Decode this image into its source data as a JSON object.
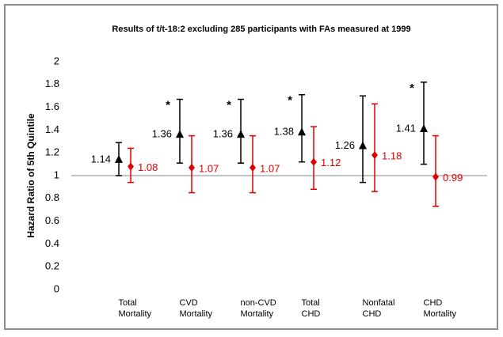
{
  "chart_data": {
    "type": "errorbar",
    "title": "Results of t/t-18:2 excluding 285 participants with FAs measured at 1999",
    "y_label": "Hazard Ratio of 5th Quintile",
    "categories": [
      [
        "Total",
        "Mortality"
      ],
      [
        "CVD",
        "Mortality"
      ],
      [
        "non-CVD",
        "Mortality"
      ],
      [
        "Total",
        "CHD"
      ],
      [
        "Nonfatal",
        "CHD"
      ],
      [
        "CHD",
        "Mortality"
      ]
    ],
    "series": [
      {
        "color": "#000000",
        "marker": "triangle",
        "values": [
          1.14,
          1.36,
          1.36,
          1.38,
          1.26,
          1.41
        ],
        "lower": [
          1.0,
          1.11,
          1.11,
          1.12,
          0.94,
          1.1
        ],
        "upper": [
          1.29,
          1.67,
          1.67,
          1.71,
          1.7,
          1.82
        ],
        "significance": [
          null,
          "*",
          "*",
          "*",
          null,
          "*"
        ]
      },
      {
        "color": "#e00000",
        "marker": "diamond",
        "values": [
          1.08,
          1.07,
          1.07,
          1.12,
          1.18,
          0.99
        ],
        "lower": [
          0.94,
          0.85,
          0.85,
          0.88,
          0.86,
          0.73
        ],
        "upper": [
          1.24,
          1.35,
          1.35,
          1.43,
          1.63,
          1.35
        ]
      }
    ],
    "ylim": [
      0,
      2
    ],
    "yticks": [
      0,
      0.2,
      0.4,
      0.6,
      0.8,
      1,
      1.2,
      1.4,
      1.6,
      1.8,
      2
    ],
    "reference_line": 1,
    "grid": false
  }
}
